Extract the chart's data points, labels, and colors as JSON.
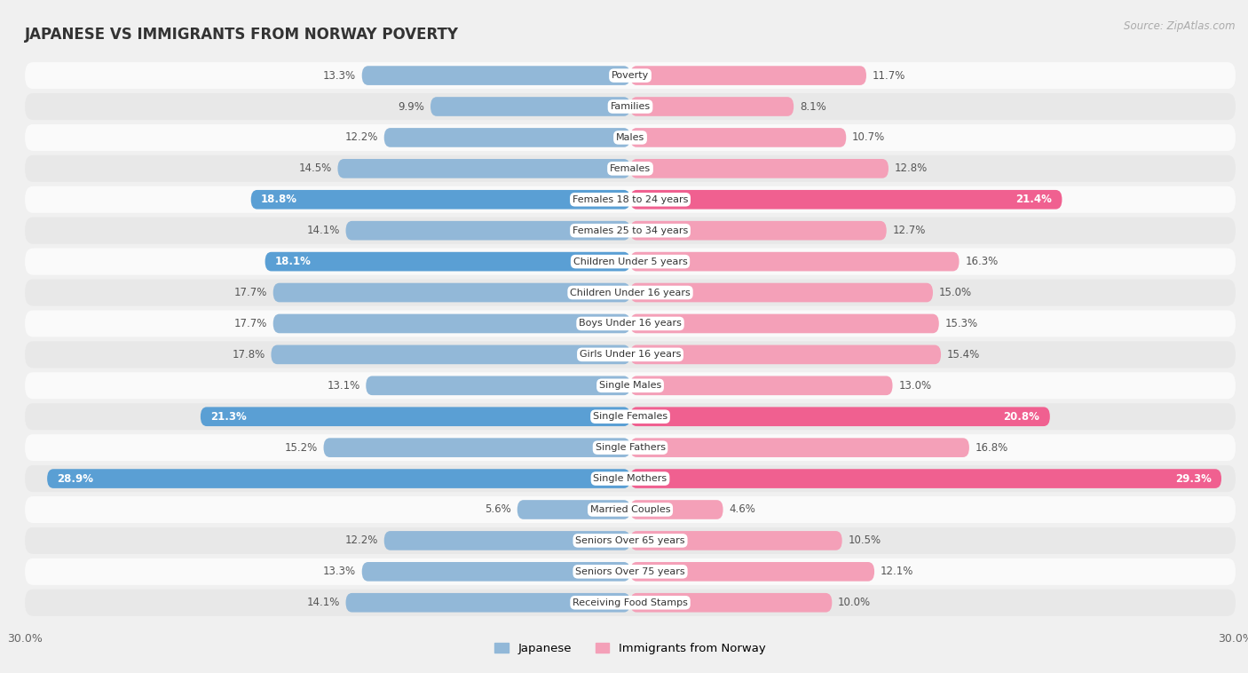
{
  "title": "JAPANESE VS IMMIGRANTS FROM NORWAY POVERTY",
  "source": "Source: ZipAtlas.com",
  "categories": [
    "Poverty",
    "Families",
    "Males",
    "Females",
    "Females 18 to 24 years",
    "Females 25 to 34 years",
    "Children Under 5 years",
    "Children Under 16 years",
    "Boys Under 16 years",
    "Girls Under 16 years",
    "Single Males",
    "Single Females",
    "Single Fathers",
    "Single Mothers",
    "Married Couples",
    "Seniors Over 65 years",
    "Seniors Over 75 years",
    "Receiving Food Stamps"
  ],
  "japanese_values": [
    13.3,
    9.9,
    12.2,
    14.5,
    18.8,
    14.1,
    18.1,
    17.7,
    17.7,
    17.8,
    13.1,
    21.3,
    15.2,
    28.9,
    5.6,
    12.2,
    13.3,
    14.1
  ],
  "norway_values": [
    11.7,
    8.1,
    10.7,
    12.8,
    21.4,
    12.7,
    16.3,
    15.0,
    15.3,
    15.4,
    13.0,
    20.8,
    16.8,
    29.3,
    4.6,
    10.5,
    12.1,
    10.0
  ],
  "japanese_color": "#92b8d8",
  "norway_color": "#f4a0b8",
  "japanese_color_highlight": "#5a9fd4",
  "norway_color_highlight": "#f06090",
  "highlight_japanese": [
    4,
    6,
    11,
    13
  ],
  "highlight_norway": [
    4,
    11,
    13
  ],
  "xlim": 30.0,
  "background_color": "#f0f0f0",
  "row_light_color": "#fafafa",
  "row_dark_color": "#e8e8e8",
  "label_bg_color": "#ffffff"
}
